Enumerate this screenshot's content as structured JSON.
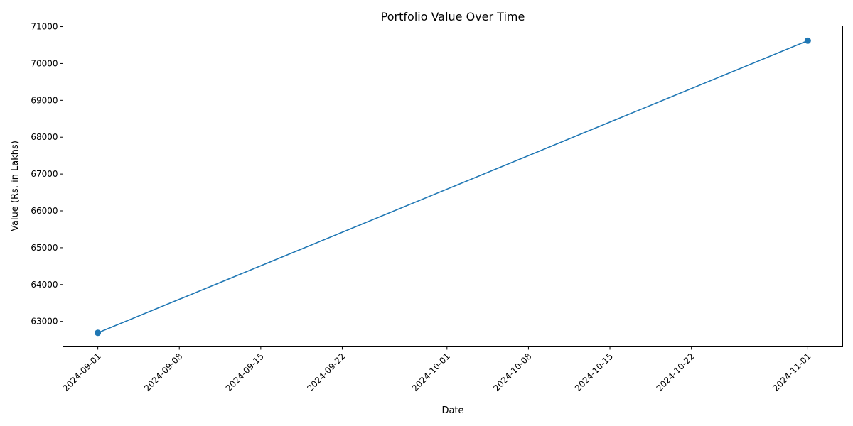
{
  "chart_data": {
    "type": "line",
    "title": "Portfolio Value Over Time",
    "xlabel": "Date",
    "ylabel": "Value (Rs. in Lakhs)",
    "x_tick_labels": [
      "2024-09-01",
      "2024-09-08",
      "2024-09-15",
      "2024-09-22",
      "2024-10-01",
      "2024-10-08",
      "2024-10-15",
      "2024-10-22",
      "2024-11-01"
    ],
    "y_ticks": [
      63000,
      64000,
      65000,
      66000,
      67000,
      68000,
      69000,
      70000,
      71000
    ],
    "xlim": [
      "2024-08-29",
      "2024-11-04"
    ],
    "ylim": [
      62310,
      71020
    ],
    "grid": false,
    "series": [
      {
        "color": "#1f77b4",
        "marker": "circle",
        "points": [
          {
            "x": "2024-09-01",
            "y": 62690
          },
          {
            "x": "2024-11-01",
            "y": 70620
          }
        ]
      }
    ]
  }
}
